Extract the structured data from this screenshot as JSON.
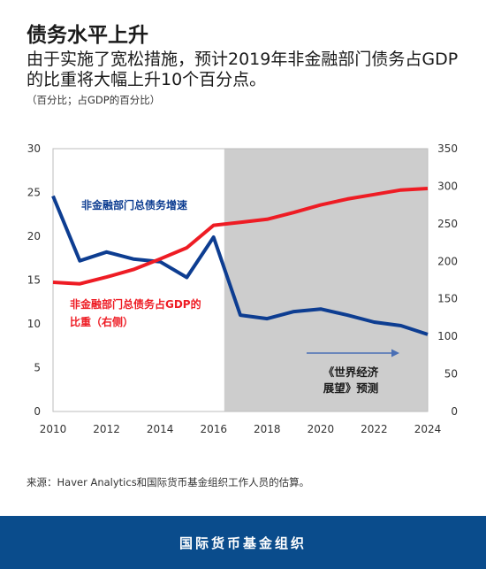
{
  "header": {
    "title": "债务水平上升",
    "subtitle": "由于实施了宽松措施，预计2019年非金融部门债务占GDP的比重将大幅上升10个百分点。",
    "units": "（百分比；占GDP的百分比）"
  },
  "chart_data": {
    "type": "line",
    "x": [
      2010,
      2011,
      2012,
      2013,
      2014,
      2015,
      2016,
      2017,
      2018,
      2019,
      2020,
      2021,
      2022,
      2023,
      2024
    ],
    "xlim": [
      2010,
      2024
    ],
    "xticks": [
      "2010",
      "2012",
      "2014",
      "2016",
      "2018",
      "2020",
      "2022",
      "2024"
    ],
    "ylim_left": [
      0,
      30
    ],
    "yticks_left": [
      "0",
      "5",
      "10",
      "15",
      "20",
      "25",
      "30"
    ],
    "ylim_right": [
      0,
      350
    ],
    "yticks_right": [
      "0",
      "50",
      "100",
      "150",
      "200",
      "250",
      "300",
      "350"
    ],
    "forecast_start": 2016.4,
    "series": [
      {
        "name": "非金融部门总债务增速",
        "axis": "left",
        "color": "#0d3d91",
        "values": [
          24.6,
          17.2,
          18.2,
          17.4,
          17.1,
          15.3,
          19.9,
          11.0,
          10.6,
          11.4,
          11.7,
          11.0,
          10.2,
          9.8,
          8.8
        ]
      },
      {
        "name": "非金融部门总债务占GDP的比重（右侧）",
        "axis": "right",
        "color": "#ee1c24",
        "values": [
          172,
          170,
          179,
          189,
          203,
          218,
          248,
          252,
          256,
          265,
          275,
          283,
          289,
          295,
          297
        ]
      }
    ],
    "annotations": {
      "growth_label": "非金融部门总债务增速",
      "ratio_label_1": "非金融部门总债务占GDP的",
      "ratio_label_2": "比重（右侧）",
      "forecast_label_1": "《世界经济",
      "forecast_label_2": "展望》预测"
    },
    "colors": {
      "forecast_shade": "#cdcdcd",
      "arrow": "#4a6fb5"
    }
  },
  "source": "来源：Haver Analytics和国际货币基金组织工作人员的估算。",
  "footer": {
    "org": "国际货币基金组织"
  }
}
